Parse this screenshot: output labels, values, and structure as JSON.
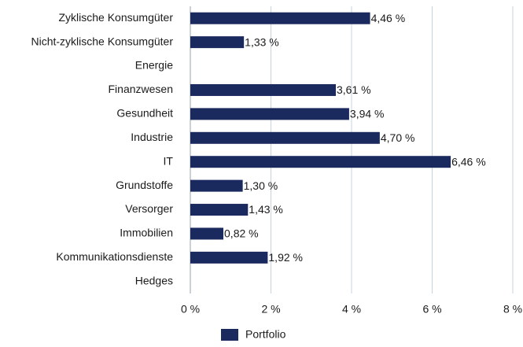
{
  "chart_data": {
    "type": "bar",
    "orientation": "horizontal",
    "categories": [
      "Zyklische Konsumgüter",
      "Nicht-zyklische Konsumgüter",
      "Energie",
      "Finanzwesen",
      "Gesundheit",
      "Industrie",
      "IT",
      "Grundstoffe",
      "Versorger",
      "Immobilien",
      "Kommunikationsdienste",
      "Hedges"
    ],
    "series": [
      {
        "name": "Portfolio",
        "color": "#1b2a5e",
        "values": [
          4.46,
          1.33,
          null,
          3.61,
          3.94,
          4.7,
          6.46,
          1.3,
          1.43,
          0.82,
          1.92,
          null
        ],
        "value_labels": [
          "4,46 %",
          "1,33 %",
          null,
          "3,61 %",
          "3,94 %",
          "4,70 %",
          "6,46 %",
          "1,30 %",
          "1,43 %",
          "0,82 %",
          "1,92 %",
          null
        ]
      }
    ],
    "xlim": [
      0,
      8
    ],
    "xticks": [
      {
        "value": 0,
        "label": "0 %"
      },
      {
        "value": 2,
        "label": "2 %"
      },
      {
        "value": 4,
        "label": "4 %"
      },
      {
        "value": 6,
        "label": "6 %"
      },
      {
        "value": 8,
        "label": "8 %"
      }
    ],
    "grid": true,
    "legend": "bottom"
  }
}
